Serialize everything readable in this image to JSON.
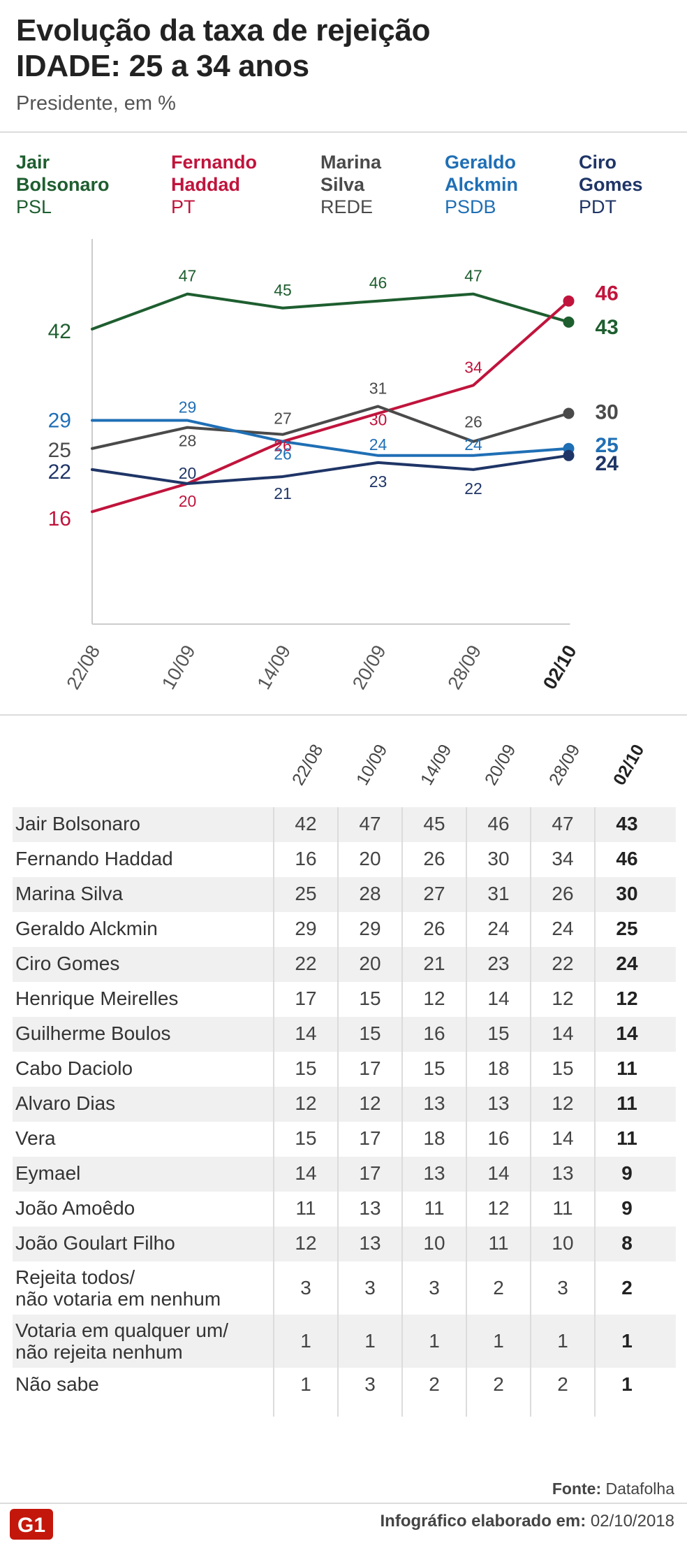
{
  "header": {
    "title_line1": "Evolução da taxa de rejeição",
    "title_line2": "IDADE: 25 a 34 anos",
    "subtitle": "Presidente, em %"
  },
  "legend": [
    {
      "name_line1": "Jair",
      "name_line2": "Bolsonaro",
      "party": "PSL",
      "color": "#1e5e2f"
    },
    {
      "name_line1": "Fernando",
      "name_line2": "Haddad",
      "party": "PT",
      "color": "#c0143c"
    },
    {
      "name_line1": "Marina",
      "name_line2": "Silva",
      "party": "REDE",
      "color": "#4a4a4a"
    },
    {
      "name_line1": "Geraldo",
      "name_line2": "Alckmin",
      "party": "PSDB",
      "color": "#1f6fb5"
    },
    {
      "name_line1": "Ciro",
      "name_line2": "Gomes",
      "party": "PDT",
      "color": "#1f3567"
    }
  ],
  "chart_data": {
    "type": "line",
    "x": [
      "22/08",
      "10/09",
      "14/09",
      "20/09",
      "28/09",
      "02/10"
    ],
    "series": [
      {
        "name": "Jair Bolsonaro",
        "color": "#1e5e2f",
        "values": [
          42,
          47,
          45,
          46,
          47,
          43
        ]
      },
      {
        "name": "Fernando Haddad",
        "color": "#c0143c",
        "values": [
          16,
          20,
          26,
          30,
          34,
          46
        ]
      },
      {
        "name": "Marina Silva",
        "color": "#4a4a4a",
        "values": [
          25,
          28,
          27,
          31,
          26,
          30
        ]
      },
      {
        "name": "Geraldo Alckmin",
        "color": "#1f6fb5",
        "values": [
          29,
          29,
          26,
          24,
          24,
          25
        ]
      },
      {
        "name": "Ciro Gomes",
        "color": "#1f3567",
        "values": [
          22,
          20,
          21,
          23,
          22,
          24
        ]
      }
    ],
    "ylim": [
      0,
      60
    ],
    "grid": false
  },
  "table": {
    "columns": [
      "22/08",
      "10/09",
      "14/09",
      "20/09",
      "28/09",
      "02/10"
    ],
    "rows": [
      {
        "label": [
          "Jair Bolsonaro"
        ],
        "values": [
          42,
          47,
          45,
          46,
          47,
          43
        ]
      },
      {
        "label": [
          "Fernando Haddad"
        ],
        "values": [
          16,
          20,
          26,
          30,
          34,
          46
        ]
      },
      {
        "label": [
          "Marina Silva"
        ],
        "values": [
          25,
          28,
          27,
          31,
          26,
          30
        ]
      },
      {
        "label": [
          "Geraldo Alckmin"
        ],
        "values": [
          29,
          29,
          26,
          24,
          24,
          25
        ]
      },
      {
        "label": [
          "Ciro Gomes"
        ],
        "values": [
          22,
          20,
          21,
          23,
          22,
          24
        ]
      },
      {
        "label": [
          "Henrique Meirelles"
        ],
        "values": [
          17,
          15,
          12,
          14,
          12,
          12
        ]
      },
      {
        "label": [
          "Guilherme Boulos"
        ],
        "values": [
          14,
          15,
          16,
          15,
          14,
          14
        ]
      },
      {
        "label": [
          "Cabo Daciolo"
        ],
        "values": [
          15,
          17,
          15,
          18,
          15,
          11
        ]
      },
      {
        "label": [
          "Alvaro Dias"
        ],
        "values": [
          12,
          12,
          13,
          13,
          12,
          11
        ]
      },
      {
        "label": [
          "Vera"
        ],
        "values": [
          15,
          17,
          18,
          16,
          14,
          11
        ]
      },
      {
        "label": [
          "Eymael"
        ],
        "values": [
          14,
          17,
          13,
          14,
          13,
          9
        ]
      },
      {
        "label": [
          "João Amoêdo"
        ],
        "values": [
          11,
          13,
          11,
          12,
          11,
          9
        ]
      },
      {
        "label": [
          "João Goulart Filho"
        ],
        "values": [
          12,
          13,
          10,
          11,
          10,
          8
        ]
      },
      {
        "label": [
          "Rejeita todos/",
          "não votaria em nenhum"
        ],
        "values": [
          3,
          3,
          3,
          2,
          3,
          2
        ]
      },
      {
        "label": [
          "Votaria em qualquer um/",
          "não rejeita nenhum"
        ],
        "values": [
          1,
          1,
          1,
          1,
          1,
          1
        ]
      },
      {
        "label": [
          "Não sabe"
        ],
        "values": [
          1,
          3,
          2,
          2,
          2,
          1
        ]
      }
    ]
  },
  "footer": {
    "source_label": "Fonte:",
    "source_value": "Datafolha",
    "credit_label": "Infográfico elaborado em:",
    "credit_date": "02/10/2018",
    "logo_text": "G1",
    "logo_color": "#c4170c"
  }
}
